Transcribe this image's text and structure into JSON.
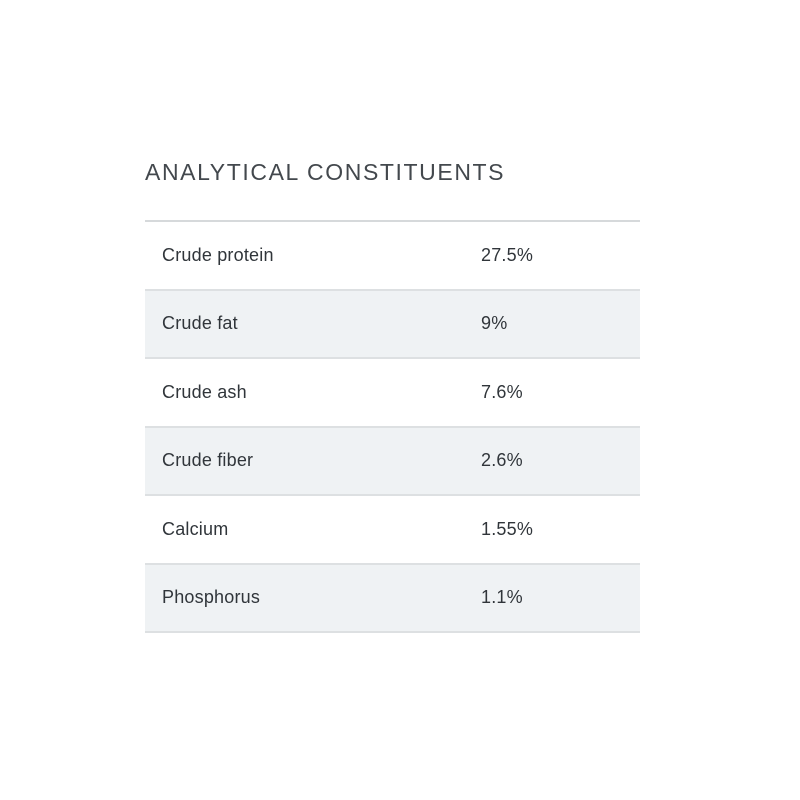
{
  "page": {
    "background_color": "#ffffff",
    "text_color": "#30353a"
  },
  "section": {
    "title": "ANALYTICAL CONSTITUENTS",
    "title_color": "#43484d"
  },
  "table": {
    "stripe_color": "#eff2f4",
    "divider_color": "#dde0e2",
    "rows": [
      {
        "label": "Crude protein",
        "value": "27.5%"
      },
      {
        "label": "Crude fat",
        "value": "9%"
      },
      {
        "label": "Crude ash",
        "value": "7.6%"
      },
      {
        "label": "Crude fiber",
        "value": "2.6%"
      },
      {
        "label": "Calcium",
        "value": "1.55%"
      },
      {
        "label": "Phosphorus",
        "value": "1.1%"
      }
    ]
  }
}
